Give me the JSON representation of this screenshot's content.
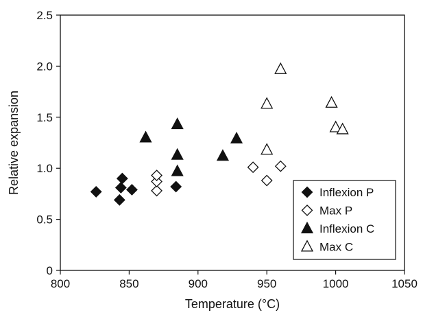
{
  "chart_data": {
    "type": "scatter",
    "title": "",
    "xlabel": "Temperature (°C)",
    "ylabel": "Relative expansion",
    "xlim": [
      800,
      1050
    ],
    "ylim": [
      0,
      2.5
    ],
    "x_ticks": [
      800,
      850,
      900,
      950,
      1000,
      1050
    ],
    "y_ticks": [
      0,
      0.5,
      1.0,
      1.5,
      2.0,
      2.5
    ],
    "x_tick_labels": [
      "800",
      "850",
      "900",
      "950",
      "1000",
      "1050"
    ],
    "y_tick_labels": [
      "0",
      "0.5",
      "1.0",
      "1.5",
      "2.0",
      "2.5"
    ],
    "grid": false,
    "legend_position": "bottom-right",
    "series": [
      {
        "name": "Inflexion P",
        "marker": "diamond",
        "filled": true,
        "color": "#111111",
        "points": [
          {
            "x": 826,
            "y": 0.77
          },
          {
            "x": 843,
            "y": 0.69
          },
          {
            "x": 844,
            "y": 0.81
          },
          {
            "x": 845,
            "y": 0.9
          },
          {
            "x": 852,
            "y": 0.79
          },
          {
            "x": 884,
            "y": 0.82
          }
        ]
      },
      {
        "name": "Max P",
        "marker": "diamond",
        "filled": false,
        "color": "#111111",
        "points": [
          {
            "x": 870,
            "y": 0.78
          },
          {
            "x": 870,
            "y": 0.87
          },
          {
            "x": 870,
            "y": 0.93
          },
          {
            "x": 940,
            "y": 1.01
          },
          {
            "x": 950,
            "y": 0.88
          },
          {
            "x": 960,
            "y": 1.02
          }
        ]
      },
      {
        "name": "Inflexion C",
        "marker": "triangle",
        "filled": true,
        "color": "#111111",
        "points": [
          {
            "x": 862,
            "y": 1.3
          },
          {
            "x": 885,
            "y": 1.43
          },
          {
            "x": 885,
            "y": 1.13
          },
          {
            "x": 885,
            "y": 0.97
          },
          {
            "x": 918,
            "y": 1.12
          },
          {
            "x": 928,
            "y": 1.29
          }
        ]
      },
      {
        "name": "Max C",
        "marker": "triangle",
        "filled": false,
        "color": "#111111",
        "points": [
          {
            "x": 950,
            "y": 1.63
          },
          {
            "x": 950,
            "y": 1.18
          },
          {
            "x": 960,
            "y": 1.97
          },
          {
            "x": 997,
            "y": 1.64
          },
          {
            "x": 1000,
            "y": 1.4
          },
          {
            "x": 1005,
            "y": 1.38
          }
        ]
      }
    ]
  }
}
